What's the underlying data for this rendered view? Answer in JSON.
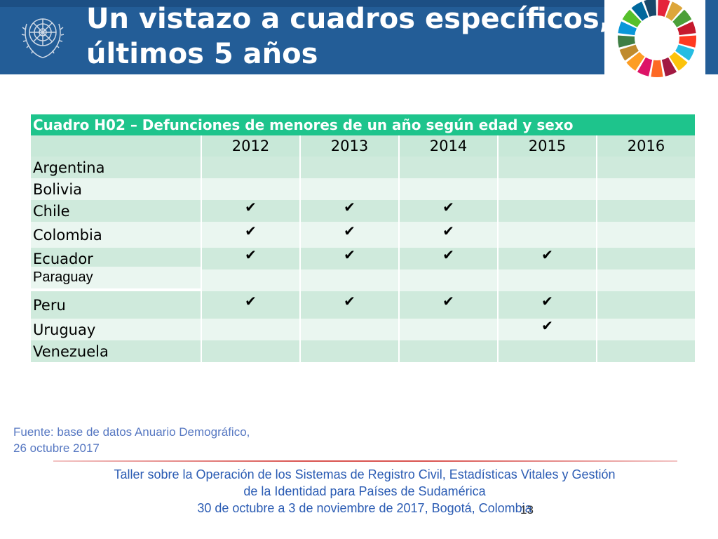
{
  "header": {
    "title_line1": "Un vistazo a cuadros específicos,",
    "title_line2": "últimos 5 años"
  },
  "table": {
    "caption": "Cuadro H02 – Defunciones de menores de un año según edad y sexo",
    "years": [
      "2012",
      "2013",
      "2014",
      "2015",
      "2016"
    ],
    "rows": [
      {
        "country": "Argentina",
        "checks": [
          false,
          false,
          false,
          false,
          false
        ]
      },
      {
        "country": "Bolivia",
        "checks": [
          false,
          false,
          false,
          false,
          false
        ]
      },
      {
        "country": "Chile",
        "checks": [
          true,
          true,
          true,
          false,
          false
        ]
      },
      {
        "country": "Colombia",
        "checks": [
          true,
          true,
          true,
          false,
          false
        ]
      },
      {
        "country": "Ecuador",
        "checks": [
          true,
          true,
          true,
          true,
          false
        ]
      },
      {
        "country": "Paraguay",
        "checks": [
          false,
          false,
          false,
          false,
          false
        ]
      },
      {
        "country": "Peru",
        "checks": [
          true,
          true,
          true,
          true,
          false
        ]
      },
      {
        "country": "Uruguay",
        "checks": [
          false,
          false,
          false,
          true,
          false
        ]
      },
      {
        "country": "Venezuela",
        "checks": [
          false,
          false,
          false,
          false,
          false
        ]
      }
    ],
    "check_mark": "✔"
  },
  "source": {
    "line1": "Fuente: base de datos Anuario Demográfico,",
    "line2": "26 octubre 2017"
  },
  "footer": {
    "line1": "Taller sobre la Operación de los Sistemas de Registro Civil, Estadísticas Vitales y Gestión",
    "line2": "de la Identidad para Países de Sudamérica",
    "line3": "30 de octubre a 3 de noviembre de 2017, Bogotá, Colombia"
  },
  "page_number": "13",
  "colors": {
    "header_blue": "#235d97",
    "table_caption_green": "#1ec48c",
    "row_light": "#eaf6f0",
    "row_dark": "#cfeadc",
    "source_text": "#5778c2",
    "footer_text": "#2a5bb3"
  },
  "icons": {
    "un_emblem": "un-emblem-icon",
    "sdg_wheel": "sdg-color-wheel-icon"
  }
}
